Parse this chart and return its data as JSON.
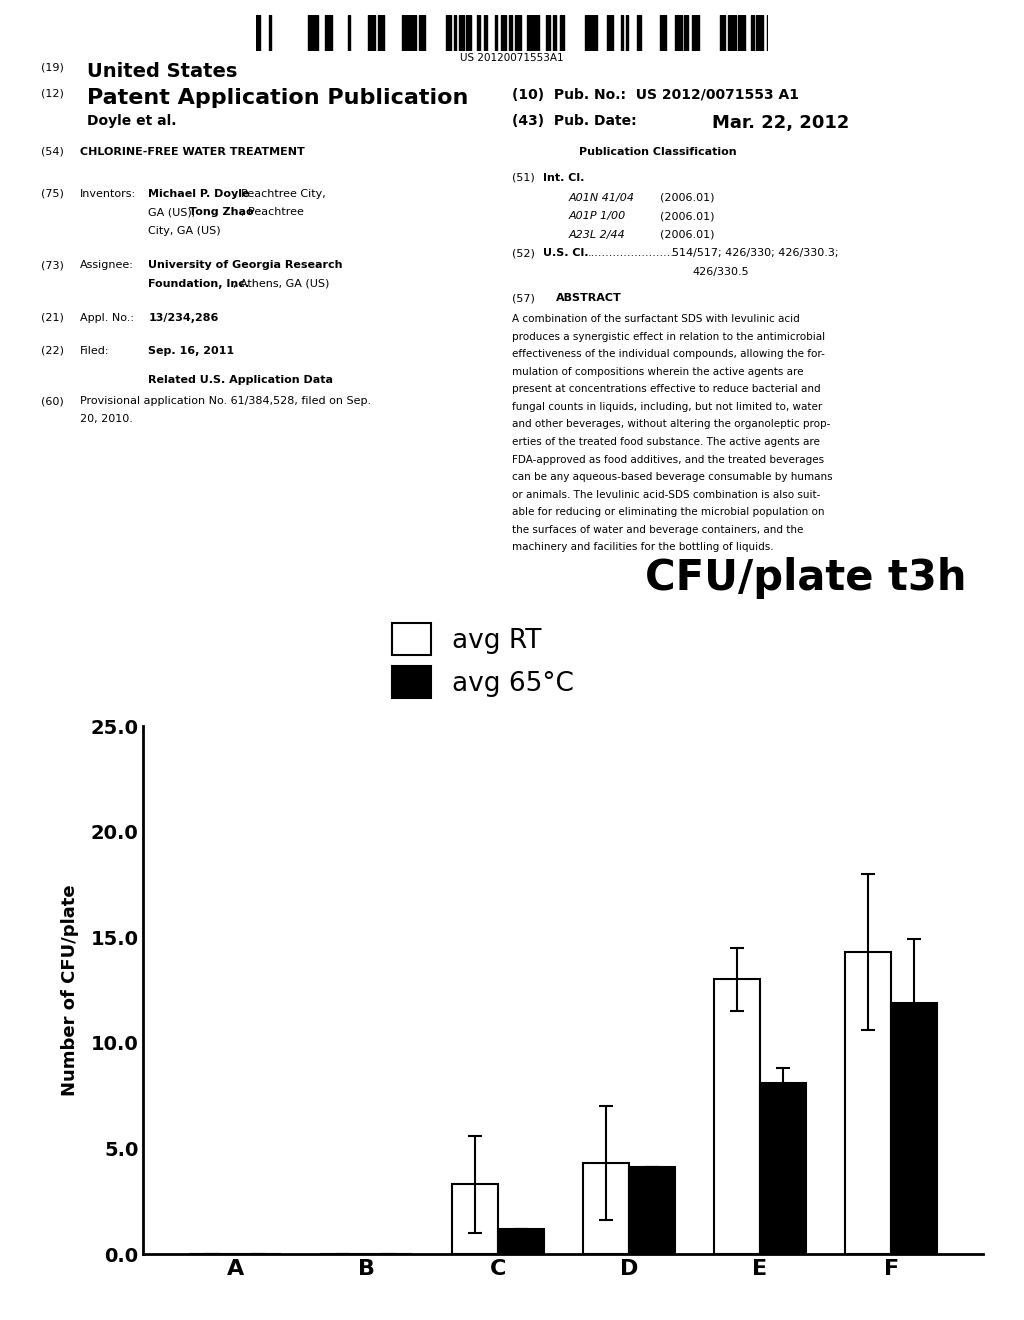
{
  "page_background": "#ffffff",
  "barcode_text": "US 20120071553A1",
  "header_left_line1_prefix": "(19)",
  "header_left_line1": "United States",
  "header_left_line2_prefix": "(12)",
  "header_left_line2": "Patent Application Publication",
  "header_left_line3": "Doyle et al.",
  "header_right_pub_no": "(10)  Pub. No.:  US 2012/0071553 A1",
  "header_right_pub_date_label": "(43)  Pub. Date:",
  "header_right_pub_date_value": "Mar. 22, 2012",
  "field54_label": "(54)",
  "field54_text": "CHLORINE-FREE WATER TREATMENT",
  "field75_label": "(75)",
  "field75_title": "Inventors:",
  "field75_name1": "Michael P. Doyle",
  "field75_rest1": ", Peachtree City,",
  "field75_line2a": "GA (US); ",
  "field75_name2": "Tong Zhao",
  "field75_rest2": ", Peachtree",
  "field75_line3": "City, GA (US)",
  "field73_label": "(73)",
  "field73_title": "Assignee:",
  "field73_name": "University of Georgia Research",
  "field73_line2a": "Foundation, Inc.",
  "field73_line2b": ", Athens, GA (US)",
  "field21_label": "(21)",
  "field21_title": "Appl. No.:",
  "field21_text": "13/234,286",
  "field22_label": "(22)",
  "field22_title": "Filed:",
  "field22_text": "Sep. 16, 2011",
  "related_title": "Related U.S. Application Data",
  "field60_label": "(60)",
  "field60_line1": "Provisional application No. 61/384,528, filed on Sep.",
  "field60_line2": "20, 2010.",
  "pub_class_title": "Publication Classification",
  "field51_label": "(51)",
  "field51_title": "Int. Cl.",
  "field51_items": [
    [
      "A01N 41/04",
      "(2006.01)"
    ],
    [
      "A01P 1/00",
      "(2006.01)"
    ],
    [
      "A23L 2/44",
      "(2006.01)"
    ]
  ],
  "field52_label": "(52)",
  "field52_title": "U.S. Cl.",
  "field52_dots": ".........................",
  "field52_line1": "514/517; 426/330; 426/330.3;",
  "field52_line2": "426/330.5",
  "field57_label": "(57)",
  "field57_title": "ABSTRACT",
  "abstract_lines": [
    "A combination of the surfactant SDS with levulinic acid",
    "produces a synergistic effect in relation to the antimicrobial",
    "effectiveness of the individual compounds, allowing the for-",
    "mulation of compositions wherein the active agents are",
    "present at concentrations effective to reduce bacterial and",
    "fungal counts in liquids, including, but not limited to, water",
    "and other beverages, without altering the organoleptic prop-",
    "erties of the treated food substance. The active agents are",
    "FDA-approved as food additives, and the treated beverages",
    "can be any aqueous-based beverage consumable by humans",
    "or animals. The levulinic acid-SDS combination is also suit-",
    "able for reducing or eliminating the microbial population on",
    "the surfaces of water and beverage containers, and the",
    "machinery and facilities for the bottling of liquids."
  ],
  "chart_title": "CFU/plate t3h",
  "chart_ylabel": "Number of CFU/plate",
  "chart_ylim": [
    0,
    25.0
  ],
  "chart_yticks": [
    0.0,
    5.0,
    10.0,
    15.0,
    20.0,
    25.0
  ],
  "chart_categories": [
    "A",
    "B",
    "C",
    "D",
    "E",
    "F"
  ],
  "legend_label_white": "avg RT",
  "legend_label_black": "avg 65°C",
  "bar_white_values": [
    0.0,
    0.0,
    3.3,
    4.3,
    13.0,
    14.3
  ],
  "bar_black_values": [
    0.0,
    0.0,
    1.2,
    4.1,
    8.1,
    11.9
  ],
  "bar_white_errors": [
    0.0,
    0.0,
    2.3,
    2.7,
    1.5,
    3.7
  ],
  "bar_black_errors": [
    0.0,
    0.0,
    0.0,
    0.0,
    0.7,
    3.0
  ],
  "bar_width": 0.35,
  "bar_white_color": "#ffffff",
  "bar_black_color": "#000000",
  "bar_edge_color": "#000000",
  "bar_linewidth": 1.5,
  "error_color": "#000000",
  "error_linewidth": 1.5,
  "error_capsize": 5
}
